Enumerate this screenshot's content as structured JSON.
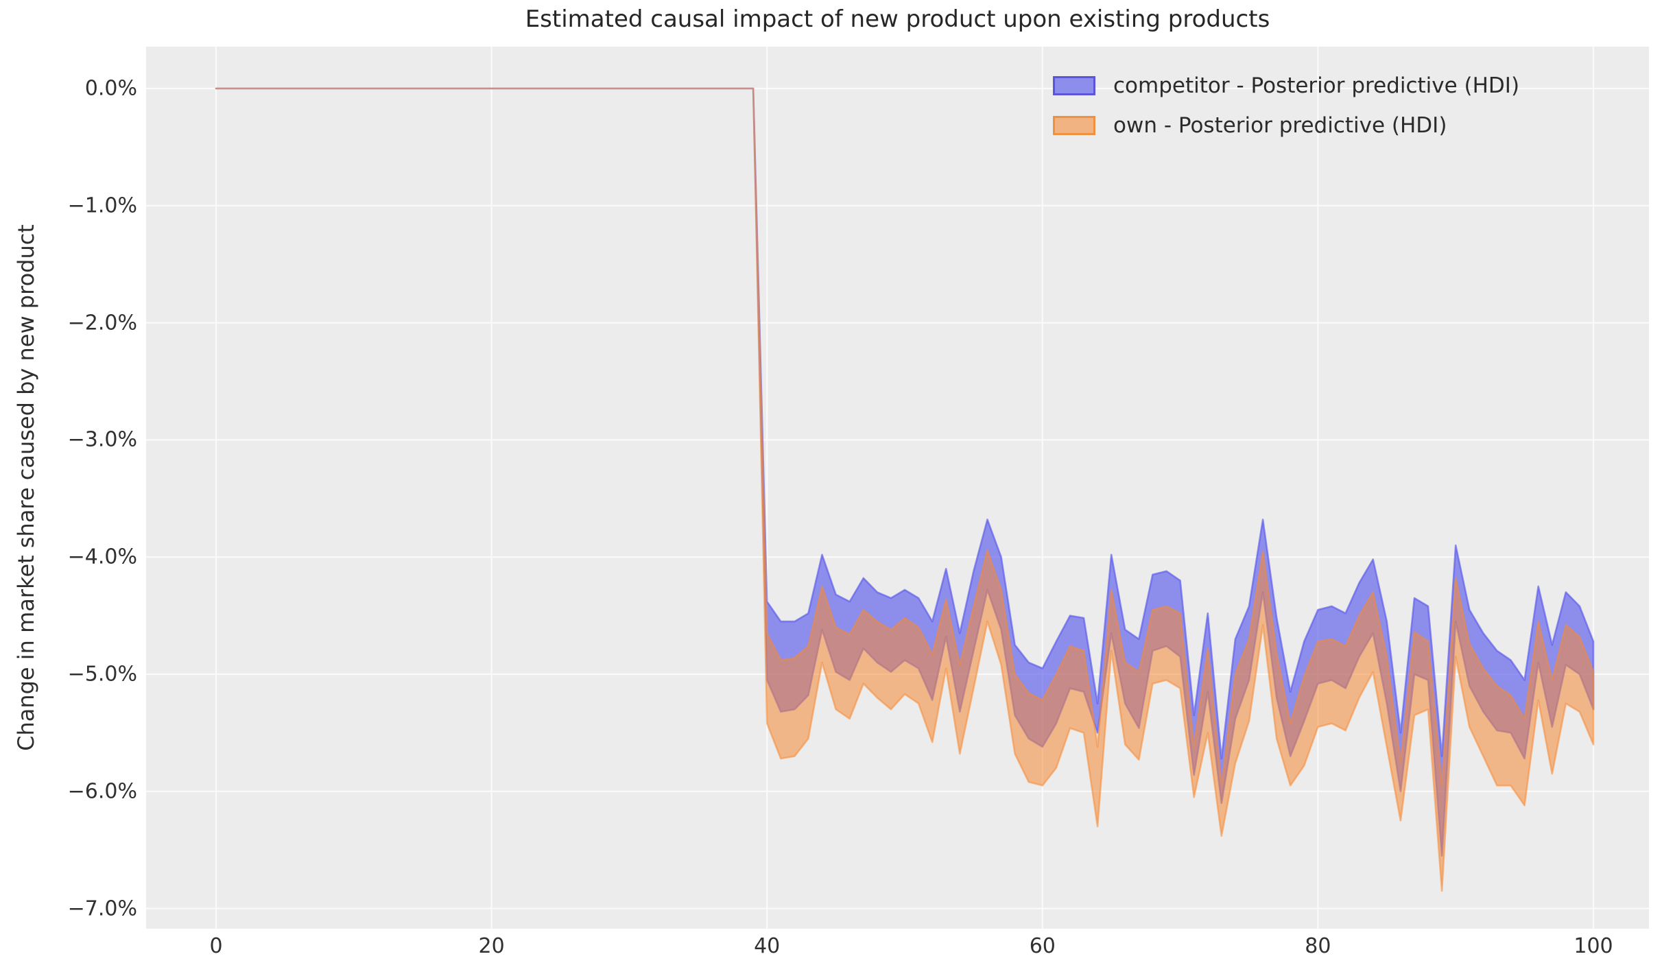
{
  "title": "Estimated causal impact of new product upon existing products",
  "y_axis": {
    "label": "Change in market share caused by new product",
    "ticks": [
      {
        "label": "0.0%",
        "value": 0
      },
      {
        "label": "−1.0%",
        "value": -1
      },
      {
        "label": "−2.0%",
        "value": -2
      },
      {
        "label": "−3.0%",
        "value": -3
      },
      {
        "label": "−4.0%",
        "value": -4
      },
      {
        "label": "−5.0%",
        "value": -5
      },
      {
        "label": "−6.0%",
        "value": -6
      },
      {
        "label": "−7.0%",
        "value": -7
      }
    ]
  },
  "x_axis": {
    "ticks": [
      {
        "label": "0",
        "value": 0
      },
      {
        "label": "20",
        "value": 20
      },
      {
        "label": "40",
        "value": 40
      },
      {
        "label": "60",
        "value": 60
      },
      {
        "label": "80",
        "value": 80
      },
      {
        "label": "100",
        "value": 100
      }
    ]
  },
  "legend": {
    "items": [
      {
        "label": "competitor - Posterior predictive (HDI)",
        "swatch_fill": "#8d8deb",
        "swatch_border": "#5a55dc"
      },
      {
        "label": "own - Posterior predictive (HDI)",
        "swatch_fill": "#f2b382",
        "swatch_border": "#ee9140"
      }
    ]
  },
  "colors": {
    "plot_background": "#ececec",
    "gridline": "#fafafa",
    "competitor_band": "rgba(90,90,235,0.65)",
    "own_band": "rgba(245,138,55,0.55)",
    "overlap_appearance": "#c68b88",
    "text": "#2e2e2e"
  },
  "chart_data": {
    "type": "area",
    "title": "Estimated causal impact of new product upon existing products",
    "xlabel": "",
    "ylabel": "Change in market share caused by new product",
    "y_unit": "percent",
    "xlim": [
      -5,
      104
    ],
    "ylim": [
      -7.2,
      0.36
    ],
    "grid": true,
    "legend_position": "upper right",
    "pre_period": {
      "x_from": 0,
      "x_to": 39,
      "upper": 0,
      "lower": 0
    },
    "x_post_start": 40,
    "x_end": 100,
    "series": [
      {
        "name": "competitor - Posterior predictive (HDI)",
        "band": true,
        "color": "rgba(90,90,235,0.65)",
        "upper_post": [
          -4.38,
          -4.55,
          -4.55,
          -4.48,
          -3.98,
          -4.32,
          -4.38,
          -4.18,
          -4.3,
          -4.35,
          -4.28,
          -4.35,
          -4.55,
          -4.1,
          -4.65,
          -4.12,
          -3.68,
          -4.0,
          -4.75,
          -4.9,
          -4.95,
          -4.72,
          -4.5,
          -4.52,
          -5.25,
          -3.98,
          -4.62,
          -4.7,
          -4.15,
          -4.12,
          -4.2,
          -5.35,
          -4.48,
          -5.72,
          -4.7,
          -4.42,
          -3.68,
          -4.52,
          -5.15,
          -4.72,
          -4.45,
          -4.42,
          -4.48,
          -4.22,
          -4.02,
          -4.55,
          -5.5,
          -4.35,
          -4.42,
          -5.7,
          -3.9,
          -4.45,
          -4.65,
          -4.8,
          -4.88,
          -5.05,
          -4.25,
          -4.75,
          -4.3,
          -4.42,
          -4.72
        ],
        "lower_post": [
          -5.05,
          -5.32,
          -5.3,
          -5.18,
          -4.62,
          -4.98,
          -5.05,
          -4.78,
          -4.9,
          -4.98,
          -4.88,
          -4.95,
          -5.22,
          -4.68,
          -5.32,
          -4.8,
          -4.28,
          -4.62,
          -5.35,
          -5.55,
          -5.62,
          -5.42,
          -5.12,
          -5.15,
          -5.5,
          -4.65,
          -5.25,
          -5.46,
          -4.8,
          -4.76,
          -4.85,
          -5.86,
          -5.15,
          -6.1,
          -5.38,
          -5.05,
          -4.3,
          -5.2,
          -5.7,
          -5.4,
          -5.08,
          -5.05,
          -5.12,
          -4.85,
          -4.65,
          -5.25,
          -6.0,
          -5.0,
          -5.05,
          -6.55,
          -4.55,
          -5.1,
          -5.32,
          -5.48,
          -5.5,
          -5.72,
          -4.9,
          -5.45,
          -4.92,
          -5.0,
          -5.3
        ]
      },
      {
        "name": "own - Posterior predictive (HDI)",
        "band": true,
        "color": "rgba(245,138,55,0.55)",
        "upper_post": [
          -4.65,
          -4.88,
          -4.86,
          -4.76,
          -4.25,
          -4.6,
          -4.66,
          -4.45,
          -4.55,
          -4.62,
          -4.52,
          -4.6,
          -4.83,
          -4.36,
          -4.92,
          -4.42,
          -3.94,
          -4.28,
          -5.0,
          -5.16,
          -5.22,
          -5.0,
          -4.76,
          -4.8,
          -5.62,
          -4.28,
          -4.9,
          -4.98,
          -4.45,
          -4.42,
          -4.48,
          -5.62,
          -4.78,
          -5.95,
          -5.0,
          -4.7,
          -3.95,
          -4.82,
          -5.42,
          -5.02,
          -4.72,
          -4.7,
          -4.76,
          -4.5,
          -4.3,
          -4.85,
          -5.75,
          -4.64,
          -4.72,
          -5.95,
          -4.18,
          -4.74,
          -4.95,
          -5.1,
          -5.18,
          -5.38,
          -4.55,
          -5.05,
          -4.58,
          -4.68,
          -4.98
        ],
        "lower_post": [
          -5.42,
          -5.72,
          -5.7,
          -5.55,
          -4.9,
          -5.3,
          -5.38,
          -5.08,
          -5.2,
          -5.3,
          -5.17,
          -5.25,
          -5.58,
          -4.95,
          -5.68,
          -5.12,
          -4.55,
          -4.92,
          -5.68,
          -5.92,
          -5.95,
          -5.8,
          -5.46,
          -5.5,
          -6.3,
          -4.8,
          -5.6,
          -5.73,
          -5.08,
          -5.05,
          -5.12,
          -6.05,
          -5.5,
          -6.38,
          -5.76,
          -5.4,
          -4.58,
          -5.55,
          -5.95,
          -5.78,
          -5.45,
          -5.42,
          -5.48,
          -5.2,
          -4.98,
          -5.62,
          -6.25,
          -5.35,
          -5.3,
          -6.85,
          -4.85,
          -5.45,
          -5.7,
          -5.95,
          -5.95,
          -6.12,
          -5.22,
          -5.85,
          -5.25,
          -5.32,
          -5.6
        ]
      }
    ]
  }
}
